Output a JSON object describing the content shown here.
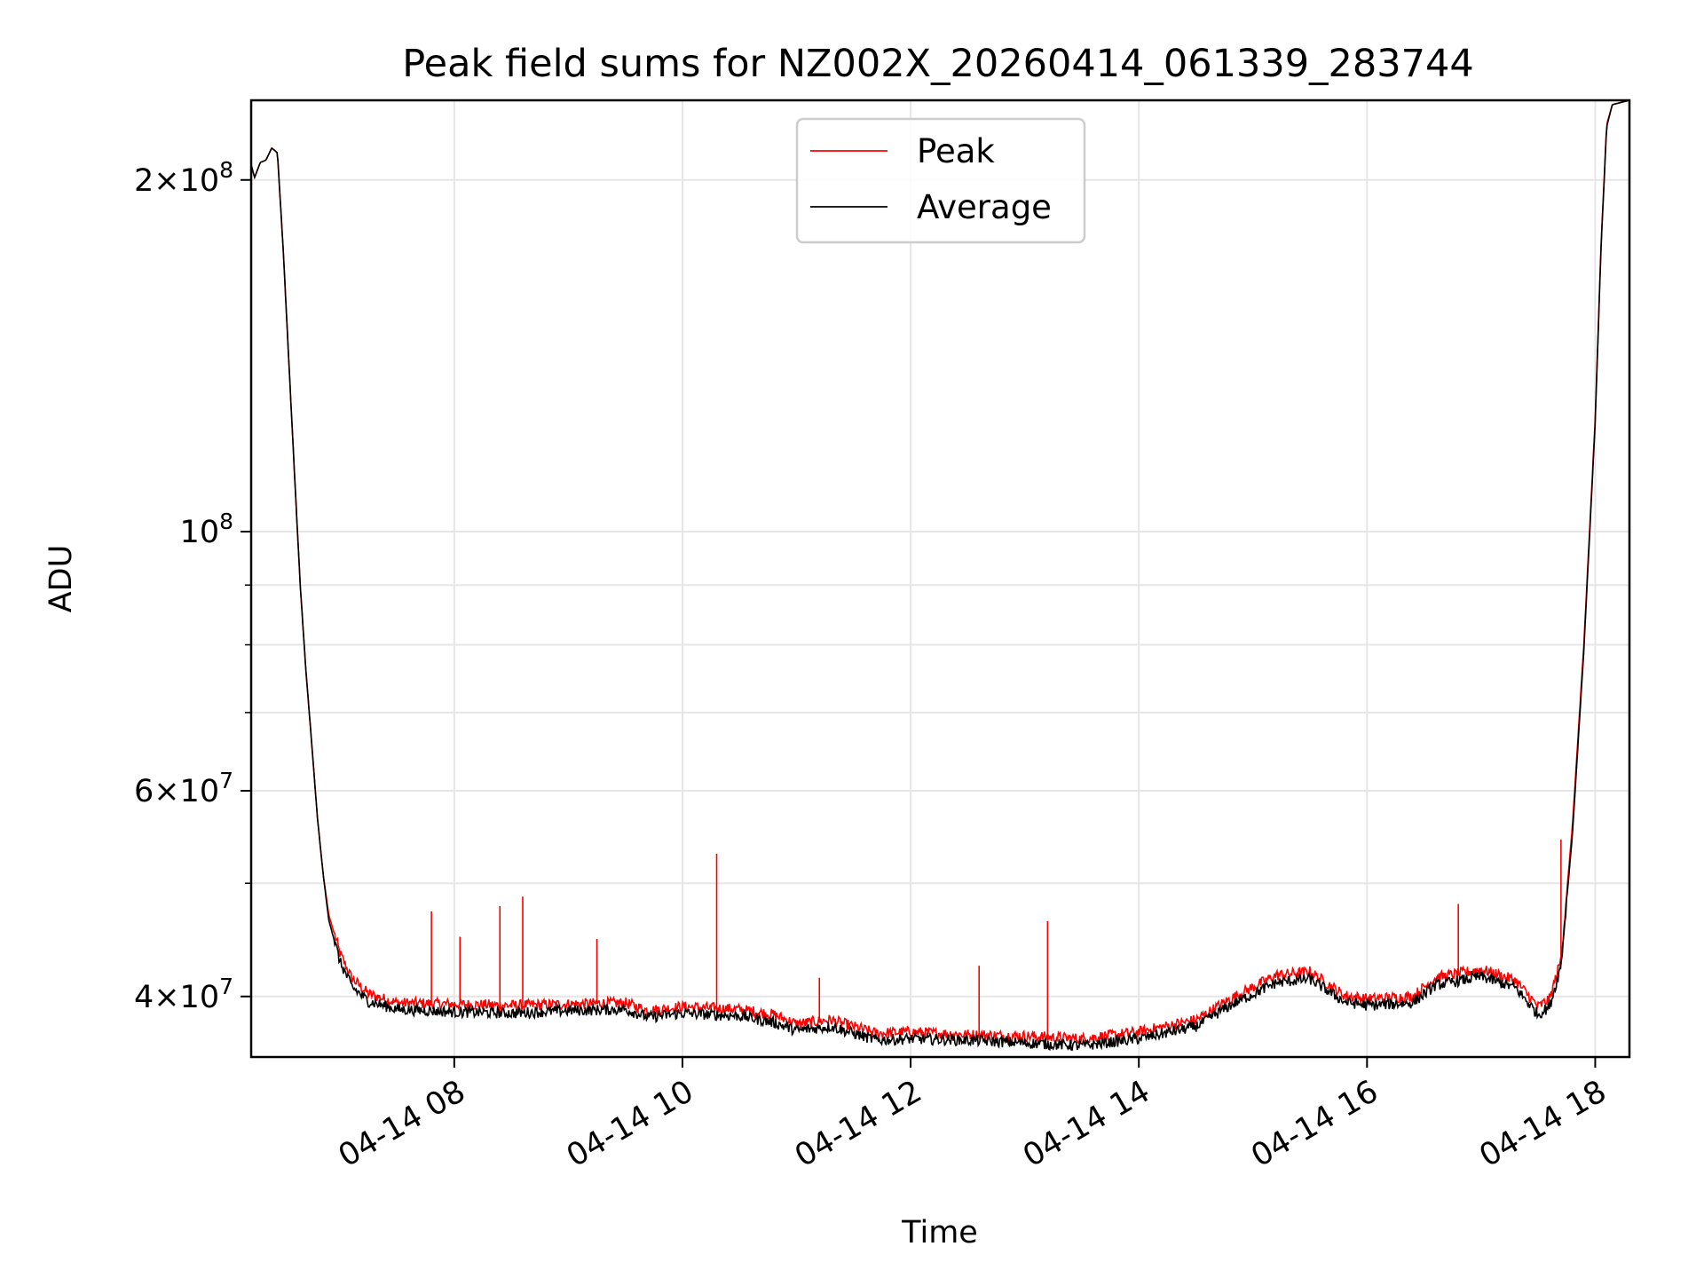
{
  "chart_data": {
    "type": "line",
    "title": "Peak field sums for NZ002X_20260414_061339_283744",
    "xlabel": "Time",
    "ylabel": "ADU",
    "yscale": "log",
    "xlim_hours": [
      6.22,
      18.3
    ],
    "ylim": [
      35500000,
      234000000
    ],
    "x_ticks": [
      {
        "label": "04-14 08",
        "hour": 8
      },
      {
        "label": "04-14 10",
        "hour": 10
      },
      {
        "label": "04-14 12",
        "hour": 12
      },
      {
        "label": "04-14 14",
        "hour": 14
      },
      {
        "label": "04-14 16",
        "hour": 16
      },
      {
        "label": "04-14 18",
        "hour": 18
      }
    ],
    "y_ticks": [
      {
        "value": 40000000,
        "mantissa": "4",
        "exponent": "7"
      },
      {
        "value": 60000000,
        "mantissa": "6",
        "exponent": "7"
      },
      {
        "value": 100000000,
        "mantissa": "",
        "exponent": "8"
      },
      {
        "value": 200000000,
        "mantissa": "2",
        "exponent": "8"
      }
    ],
    "y_minor_ticks": [
      50000000,
      70000000,
      80000000,
      90000000
    ],
    "grid": true,
    "legend_position": "top-center",
    "series": [
      {
        "name": "Peak",
        "color": "#ff0000",
        "points": [
          [
            6.22,
            206000000
          ],
          [
            6.25,
            201000000
          ],
          [
            6.3,
            207000000
          ],
          [
            6.35,
            208000000
          ],
          [
            6.4,
            213000000
          ],
          [
            6.45,
            211000000
          ],
          [
            6.5,
            175000000
          ],
          [
            6.55,
            140000000
          ],
          [
            6.6,
            112000000
          ],
          [
            6.65,
            90000000
          ],
          [
            6.7,
            76000000
          ],
          [
            6.75,
            66000000
          ],
          [
            6.8,
            57000000
          ],
          [
            6.85,
            51000000
          ],
          [
            6.9,
            47000000
          ],
          [
            7.0,
            43500000
          ],
          [
            7.1,
            41500000
          ],
          [
            7.25,
            40200000
          ],
          [
            7.5,
            39500000
          ],
          [
            8.0,
            39400000
          ],
          [
            8.5,
            39300000
          ],
          [
            9.0,
            39400000
          ],
          [
            9.5,
            39500000
          ],
          [
            9.7,
            38900000
          ],
          [
            10.0,
            39200000
          ],
          [
            10.5,
            39000000
          ],
          [
            10.8,
            38600000
          ],
          [
            11.0,
            37900000
          ],
          [
            11.3,
            38200000
          ],
          [
            11.5,
            37700000
          ],
          [
            11.7,
            37200000
          ],
          [
            12.0,
            37300000
          ],
          [
            12.5,
            37100000
          ],
          [
            13.0,
            37000000
          ],
          [
            13.5,
            36800000
          ],
          [
            14.0,
            37300000
          ],
          [
            14.5,
            38200000
          ],
          [
            14.8,
            39800000
          ],
          [
            15.2,
            41700000
          ],
          [
            15.5,
            42000000
          ],
          [
            15.8,
            40100000
          ],
          [
            16.0,
            39800000
          ],
          [
            16.4,
            40000000
          ],
          [
            16.6,
            41500000
          ],
          [
            17.0,
            42200000
          ],
          [
            17.3,
            41300000
          ],
          [
            17.5,
            39200000
          ],
          [
            17.6,
            39800000
          ],
          [
            17.7,
            43000000
          ],
          [
            17.8,
            56000000
          ],
          [
            17.9,
            80000000
          ],
          [
            18.0,
            125000000
          ],
          [
            18.05,
            175000000
          ],
          [
            18.1,
            223000000
          ],
          [
            18.15,
            232000000
          ],
          [
            18.3,
            234000000
          ]
        ],
        "spikes": [
          [
            7.8,
            47300000
          ],
          [
            8.05,
            45000000
          ],
          [
            8.4,
            47800000
          ],
          [
            8.6,
            48700000
          ],
          [
            9.25,
            44800000
          ],
          [
            10.3,
            53000000
          ],
          [
            11.2,
            41500000
          ],
          [
            12.6,
            42500000
          ],
          [
            13.2,
            46400000
          ],
          [
            16.8,
            48000000
          ],
          [
            17.7,
            54500000
          ]
        ]
      },
      {
        "name": "Average",
        "color": "#000000",
        "points": [
          [
            6.22,
            206000000
          ],
          [
            6.25,
            201000000
          ],
          [
            6.3,
            207000000
          ],
          [
            6.35,
            208000000
          ],
          [
            6.4,
            213000000
          ],
          [
            6.45,
            211000000
          ],
          [
            6.5,
            175000000
          ],
          [
            6.55,
            140000000
          ],
          [
            6.6,
            112000000
          ],
          [
            6.65,
            90000000
          ],
          [
            6.7,
            76000000
          ],
          [
            6.75,
            66000000
          ],
          [
            6.8,
            57000000
          ],
          [
            6.85,
            51000000
          ],
          [
            6.9,
            46500000
          ],
          [
            7.0,
            42800000
          ],
          [
            7.1,
            40800000
          ],
          [
            7.25,
            39600000
          ],
          [
            7.5,
            39000000
          ],
          [
            8.0,
            38800000
          ],
          [
            8.5,
            38700000
          ],
          [
            9.0,
            38900000
          ],
          [
            9.5,
            39000000
          ],
          [
            9.7,
            38400000
          ],
          [
            10.0,
            38700000
          ],
          [
            10.5,
            38500000
          ],
          [
            10.8,
            38000000
          ],
          [
            11.0,
            37400000
          ],
          [
            11.3,
            37700000
          ],
          [
            11.5,
            37200000
          ],
          [
            11.7,
            36700000
          ],
          [
            12.0,
            36800000
          ],
          [
            12.5,
            36700000
          ],
          [
            13.0,
            36500000
          ],
          [
            13.5,
            36300000
          ],
          [
            14.0,
            36800000
          ],
          [
            14.5,
            37700000
          ],
          [
            14.8,
            39300000
          ],
          [
            15.2,
            41100000
          ],
          [
            15.5,
            41400000
          ],
          [
            15.8,
            39600000
          ],
          [
            16.0,
            39300000
          ],
          [
            16.4,
            39500000
          ],
          [
            16.6,
            40900000
          ],
          [
            17.0,
            41600000
          ],
          [
            17.3,
            40700000
          ],
          [
            17.5,
            38600000
          ],
          [
            17.6,
            39200000
          ],
          [
            17.7,
            42500000
          ],
          [
            17.8,
            55000000
          ],
          [
            17.9,
            79000000
          ],
          [
            18.0,
            124000000
          ],
          [
            18.05,
            174000000
          ],
          [
            18.1,
            222000000
          ],
          [
            18.15,
            232000000
          ],
          [
            18.3,
            234000000
          ]
        ]
      }
    ]
  }
}
